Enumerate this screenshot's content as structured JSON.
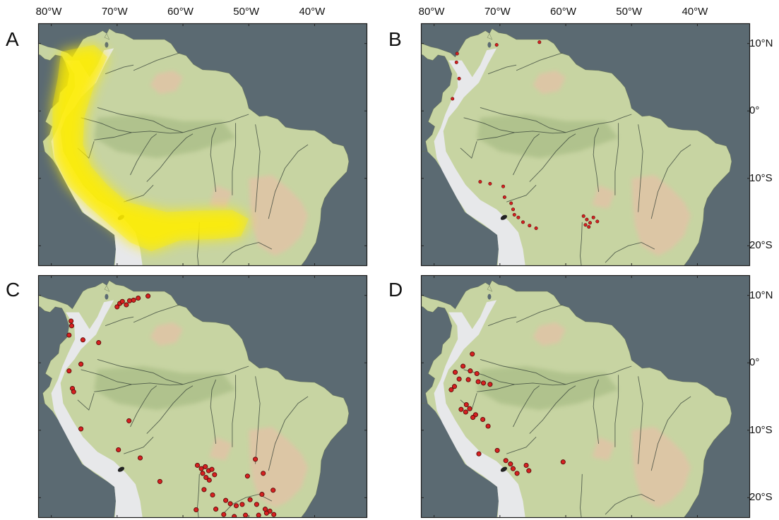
{
  "figure": {
    "lon_ticks": [
      "80°W",
      "70°W",
      "60°W",
      "50°W",
      "40°W"
    ],
    "lat_ticks": [
      "10°N",
      "0°",
      "10°S",
      "20°S"
    ],
    "extent": {
      "lon_min": -82,
      "lon_max": -32,
      "lat_min": -23,
      "lat_max": 13
    },
    "colors": {
      "ocean": "#5b6a72",
      "land": "#c7d4a2",
      "lowland_green": "#a9bd86",
      "highland": "#dfc5a6",
      "andes": "#e9e9ee",
      "river": "#2f3b33",
      "range_yellow": "#ffee00",
      "point_fill": "#d62020",
      "point_stroke": "#5a0a0a"
    }
  },
  "panels": [
    {
      "letter": "A",
      "content": "range"
    },
    {
      "letter": "B",
      "content": "points",
      "points": [
        [
          -76.5,
          8.5
        ],
        [
          -76.6,
          7.2
        ],
        [
          -76.2,
          4.8
        ],
        [
          -77.2,
          1.8
        ],
        [
          -70.5,
          9.8
        ],
        [
          -64.0,
          10.2
        ],
        [
          -73.0,
          -10.5
        ],
        [
          -71.5,
          -10.8
        ],
        [
          -69.5,
          -11.2
        ],
        [
          -69.3,
          -12.8
        ],
        [
          -68.3,
          -13.7
        ],
        [
          -68.0,
          -14.6
        ],
        [
          -67.8,
          -15.4
        ],
        [
          -67.2,
          -15.8
        ],
        [
          -66.5,
          -16.5
        ],
        [
          -65.5,
          -17.0
        ],
        [
          -64.5,
          -17.4
        ],
        [
          -57.3,
          -15.6
        ],
        [
          -56.8,
          -16.1
        ],
        [
          -56.3,
          -16.6
        ],
        [
          -55.8,
          -15.8
        ],
        [
          -57.0,
          -16.9
        ],
        [
          -55.2,
          -16.4
        ],
        [
          -56.5,
          -17.2
        ]
      ]
    },
    {
      "letter": "C",
      "content": "points",
      "points": [
        [
          -77.0,
          6.2
        ],
        [
          -76.9,
          5.5
        ],
        [
          -77.3,
          4.1
        ],
        [
          -75.2,
          3.4
        ],
        [
          -72.8,
          3.0
        ],
        [
          -70.0,
          8.3
        ],
        [
          -69.6,
          8.8
        ],
        [
          -69.2,
          9.1
        ],
        [
          -68.6,
          8.6
        ],
        [
          -68.1,
          9.2
        ],
        [
          -67.5,
          9.3
        ],
        [
          -66.8,
          9.6
        ],
        [
          -65.3,
          9.9
        ],
        [
          -75.5,
          -0.2
        ],
        [
          -77.3,
          -1.2
        ],
        [
          -76.8,
          -3.8
        ],
        [
          -76.6,
          -4.3
        ],
        [
          -75.5,
          -9.8
        ],
        [
          -68.2,
          -8.6
        ],
        [
          -69.8,
          -12.9
        ],
        [
          -66.5,
          -14.1
        ],
        [
          -63.5,
          -17.6
        ],
        [
          -57.8,
          -15.2
        ],
        [
          -57.2,
          -15.7
        ],
        [
          -56.6,
          -15.4
        ],
        [
          -56.1,
          -16.0
        ],
        [
          -55.6,
          -15.8
        ],
        [
          -57.0,
          -16.4
        ],
        [
          -56.5,
          -17.0
        ],
        [
          -55.2,
          -16.6
        ],
        [
          -56.0,
          -17.4
        ],
        [
          -56.8,
          -18.8
        ],
        [
          -55.5,
          -19.6
        ],
        [
          -53.5,
          -20.4
        ],
        [
          -52.8,
          -20.9
        ],
        [
          -51.9,
          -21.2
        ],
        [
          -51.0,
          -21.0
        ],
        [
          -49.8,
          -20.3
        ],
        [
          -48.8,
          -21.0
        ],
        [
          -47.5,
          -21.7
        ],
        [
          -46.8,
          -22.0
        ],
        [
          -47.3,
          -22.3
        ],
        [
          -46.2,
          -22.5
        ],
        [
          -48.5,
          -22.6
        ],
        [
          -50.5,
          -22.6
        ],
        [
          -52.2,
          -22.8
        ],
        [
          -53.8,
          -22.5
        ],
        [
          -58.0,
          -21.8
        ],
        [
          -55.0,
          -21.7
        ],
        [
          -49.0,
          -14.3
        ],
        [
          -50.2,
          -16.8
        ],
        [
          -47.8,
          -16.4
        ],
        [
          -46.3,
          -18.9
        ],
        [
          -48.0,
          -19.5
        ]
      ]
    },
    {
      "letter": "D",
      "content": "points",
      "points": [
        [
          -74.2,
          1.3
        ],
        [
          -75.6,
          -0.5
        ],
        [
          -76.8,
          -1.4
        ],
        [
          -74.5,
          -1.2
        ],
        [
          -73.5,
          -1.6
        ],
        [
          -76.2,
          -2.4
        ],
        [
          -74.8,
          -2.5
        ],
        [
          -73.3,
          -2.8
        ],
        [
          -72.5,
          -3.0
        ],
        [
          -71.5,
          -3.2
        ],
        [
          -76.9,
          -3.5
        ],
        [
          -77.4,
          -4.0
        ],
        [
          -75.1,
          -6.2
        ],
        [
          -74.6,
          -6.8
        ],
        [
          -75.9,
          -6.9
        ],
        [
          -75.2,
          -7.3
        ],
        [
          -73.7,
          -7.7
        ],
        [
          -74.1,
          -8.1
        ],
        [
          -72.6,
          -8.4
        ],
        [
          -71.8,
          -9.4
        ],
        [
          -73.2,
          -13.5
        ],
        [
          -70.4,
          -13.0
        ],
        [
          -69.1,
          -14.5
        ],
        [
          -68.4,
          -15.0
        ],
        [
          -68.0,
          -15.7
        ],
        [
          -67.4,
          -16.4
        ],
        [
          -66.0,
          -15.2
        ],
        [
          -65.6,
          -16.0
        ],
        [
          -60.4,
          -14.7
        ]
      ]
    }
  ]
}
